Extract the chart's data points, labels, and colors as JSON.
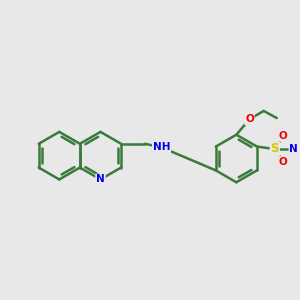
{
  "bg_color": "#e8e8e8",
  "bond_color": "#3a7a3a",
  "bond_width": 1.8,
  "dbo": 0.055,
  "atom_colors": {
    "N": "#0000ee",
    "O": "#ee0000",
    "S": "#cccc00",
    "C": "#3a7a3a"
  },
  "font_size": 7.5,
  "fig_size": [
    3.0,
    3.0
  ],
  "dpi": 100,
  "xlim": [
    -2.8,
    2.4
  ],
  "ylim": [
    -1.1,
    1.5
  ]
}
